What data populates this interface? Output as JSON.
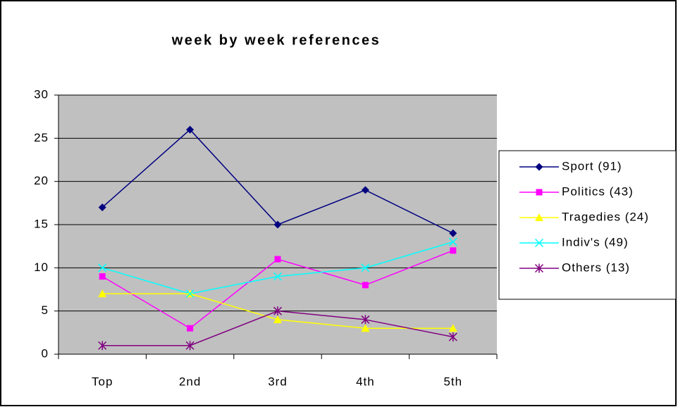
{
  "chart_data": {
    "type": "line",
    "title": "week by week references",
    "categories": [
      "Top",
      "2nd",
      "3rd",
      "4th",
      "5th"
    ],
    "series": [
      {
        "name": "Sport (91)",
        "color": "#000080",
        "marker": "diamond",
        "values": [
          17,
          26,
          15,
          19,
          14
        ]
      },
      {
        "name": "Politics (43)",
        "color": "#ff00ff",
        "marker": "square",
        "values": [
          9,
          3,
          11,
          8,
          12
        ]
      },
      {
        "name": "Tragedies (24)",
        "color": "#ffff00",
        "marker": "triangle",
        "values": [
          7,
          7,
          4,
          3,
          3
        ]
      },
      {
        "name": "Indiv's (49)",
        "color": "#00ffff",
        "marker": "x",
        "values": [
          10,
          7,
          9,
          10,
          13
        ]
      },
      {
        "name": "Others (13)",
        "color": "#800080",
        "marker": "asterisk",
        "values": [
          1,
          1,
          5,
          4,
          2
        ]
      }
    ],
    "ylim": [
      0,
      30
    ],
    "yticks": [
      0,
      5,
      10,
      15,
      20,
      25,
      30
    ],
    "grid": true,
    "legend": "right"
  }
}
